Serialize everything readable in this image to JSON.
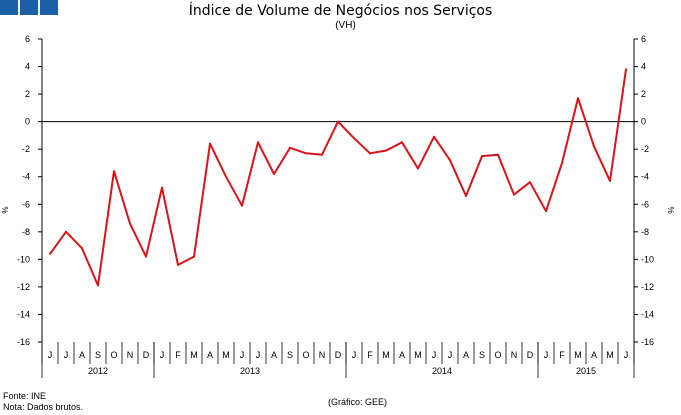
{
  "brand": {
    "logo_colors": [
      "#1a5fa8",
      "#1a5fa8",
      "#1a5fa8"
    ]
  },
  "chart_data": {
    "type": "line",
    "title": "Índice de Volume de Negócios nos Serviços",
    "subtitle": "(VH)",
    "ylabel_left": "%",
    "ylabel_right": "%",
    "ylim": [
      -16,
      6
    ],
    "yticks": [
      6,
      4,
      2,
      0,
      -2,
      -4,
      -6,
      -8,
      -10,
      -12,
      -14,
      -16
    ],
    "grid": false,
    "month_labels": [
      "J",
      "J",
      "A",
      "S",
      "O",
      "N",
      "D",
      "J",
      "F",
      "M",
      "A",
      "M",
      "J",
      "J",
      "A",
      "S",
      "O",
      "N",
      "D",
      "J",
      "F",
      "M",
      "A",
      "M",
      "J",
      "J",
      "A",
      "S",
      "O",
      "N",
      "D",
      "J",
      "F",
      "M",
      "A",
      "M",
      "J"
    ],
    "years": [
      {
        "label": "2012",
        "start": 0,
        "end": 7
      },
      {
        "label": "2013",
        "start": 7,
        "end": 19
      },
      {
        "label": "2014",
        "start": 19,
        "end": 31
      },
      {
        "label": "2015",
        "start": 31,
        "end": 37
      }
    ],
    "series": [
      {
        "name": "Índice de Volume de Negócios nos Serviços (VH)",
        "color": "#d7141a",
        "values": [
          -9.6,
          -8.0,
          -9.2,
          -11.9,
          -3.6,
          -7.4,
          -9.8,
          -4.8,
          -10.4,
          -9.8,
          -1.6,
          -4.0,
          -6.1,
          -1.5,
          -3.8,
          -1.9,
          -2.3,
          -2.4,
          0.0,
          -1.2,
          -2.3,
          -2.1,
          -1.5,
          -3.4,
          -1.1,
          -2.8,
          -5.4,
          -2.5,
          -2.4,
          -5.3,
          -4.4,
          -6.5,
          -3.0,
          1.7,
          -1.8,
          -4.3,
          3.8
        ]
      }
    ]
  },
  "footer": {
    "source": "Fonte: INE",
    "note": "Nota: Dados brutos.",
    "credit": "(Gráfico: GEE)"
  }
}
